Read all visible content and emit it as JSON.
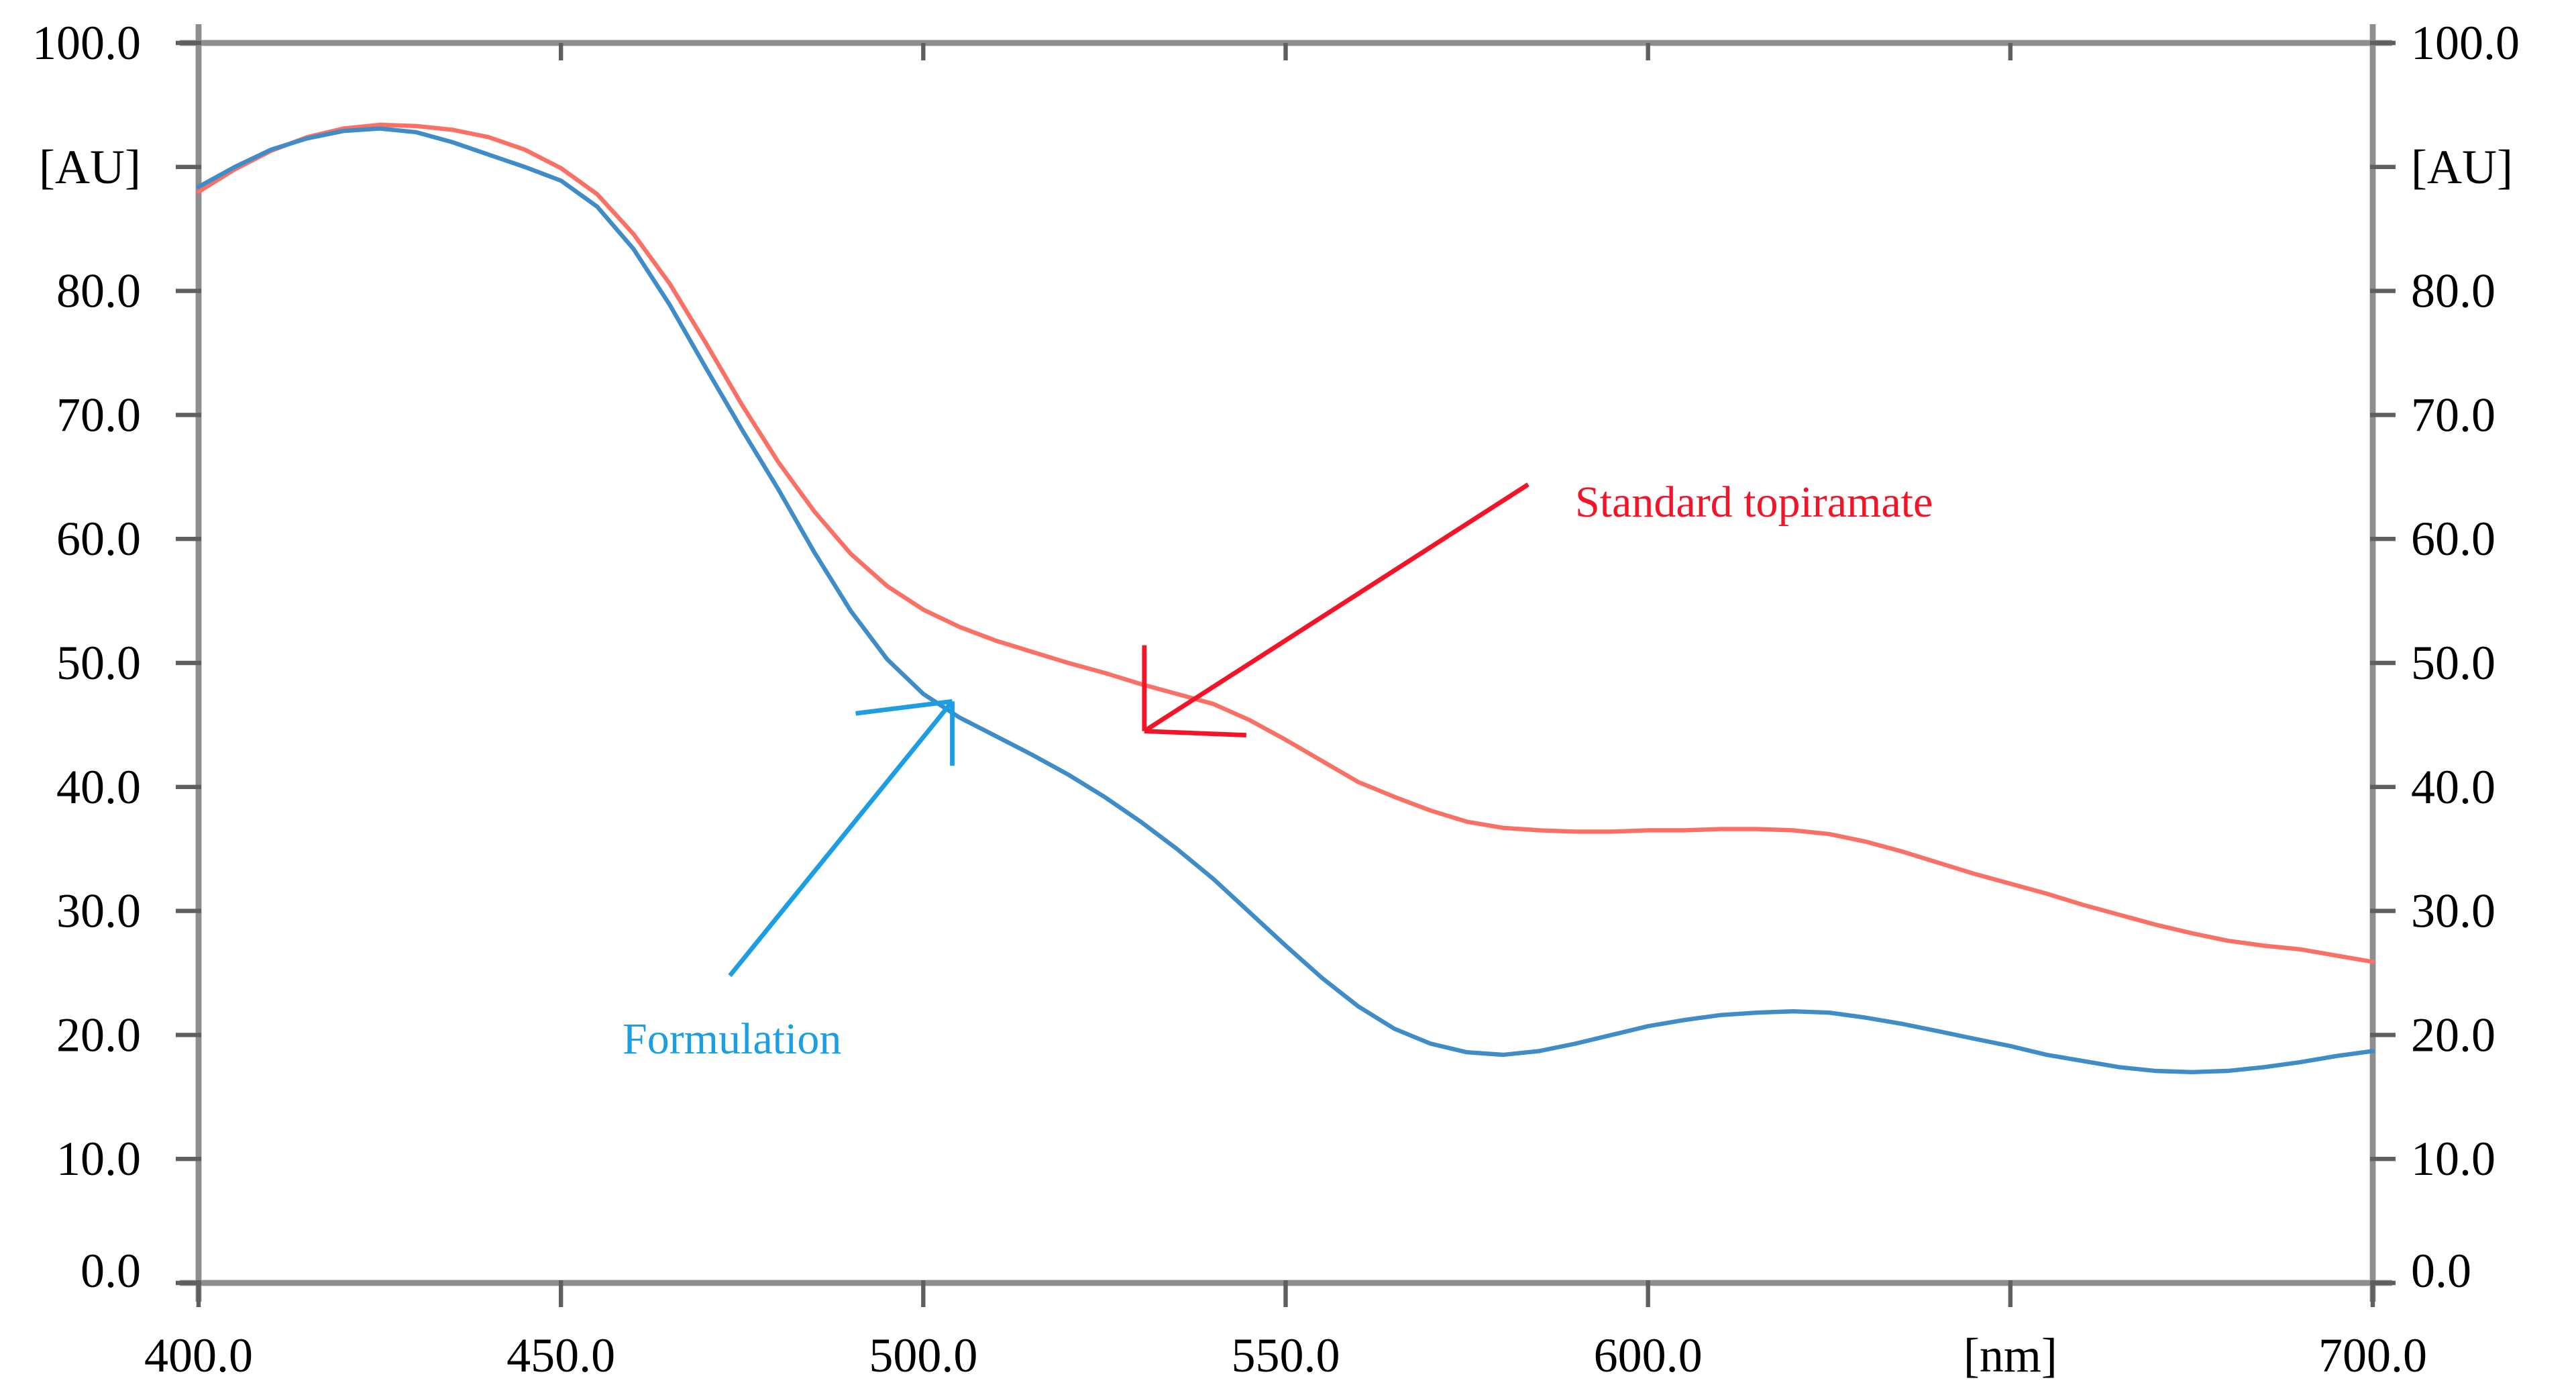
{
  "figure": {
    "background": "#ffffff",
    "axis_color": "#8e8e8e",
    "tick_color": "#5f5f5f",
    "label_color": "#000000"
  },
  "chart_data": {
    "type": "line",
    "title": "",
    "xlabel": "[nm]",
    "ylabel": "[AU]",
    "xlim": [
      400,
      700
    ],
    "ylim": [
      0,
      100
    ],
    "grid": false,
    "legend_position": "none",
    "x": [
      400,
      405,
      410,
      415,
      420,
      425,
      430,
      435,
      440,
      445,
      450,
      455,
      460,
      465,
      470,
      475,
      480,
      485,
      490,
      495,
      500,
      505,
      510,
      515,
      520,
      525,
      530,
      535,
      540,
      545,
      550,
      555,
      560,
      565,
      570,
      575,
      580,
      585,
      590,
      595,
      600,
      605,
      610,
      615,
      620,
      625,
      630,
      635,
      640,
      645,
      650,
      655,
      660,
      665,
      670,
      675,
      680,
      685,
      690,
      695,
      700
    ],
    "series": [
      {
        "name": "Standard topiramate",
        "color": "#fa7064",
        "values": [
          88.0,
          89.8,
          91.3,
          92.4,
          93.1,
          93.4,
          93.3,
          93.0,
          92.4,
          91.4,
          89.9,
          87.8,
          84.6,
          80.6,
          75.8,
          70.8,
          66.2,
          62.2,
          58.8,
          56.2,
          54.3,
          52.9,
          51.8,
          50.9,
          50.0,
          49.2,
          48.3,
          47.5,
          46.7,
          45.4,
          43.8,
          42.1,
          40.4,
          39.2,
          38.1,
          37.2,
          36.7,
          36.5,
          36.4,
          36.4,
          36.5,
          36.5,
          36.6,
          36.6,
          36.5,
          36.2,
          35.6,
          34.8,
          33.9,
          33.0,
          32.2,
          31.4,
          30.5,
          29.7,
          28.9,
          28.2,
          27.6,
          27.2,
          26.9,
          26.4,
          25.9
        ]
      },
      {
        "name": "Formulation",
        "color": "#3e8cc8",
        "values": [
          88.4,
          90.0,
          91.4,
          92.3,
          92.9,
          93.1,
          92.8,
          92.0,
          91.0,
          90.0,
          88.9,
          86.8,
          83.4,
          78.9,
          73.8,
          68.8,
          64.0,
          58.9,
          54.2,
          50.3,
          47.5,
          45.6,
          44.1,
          42.6,
          41.0,
          39.2,
          37.2,
          35.0,
          32.6,
          29.9,
          27.2,
          24.6,
          22.3,
          20.5,
          19.3,
          18.6,
          18.4,
          18.7,
          19.3,
          20.0,
          20.7,
          21.2,
          21.6,
          21.8,
          21.9,
          21.8,
          21.4,
          20.9,
          20.3,
          19.7,
          19.1,
          18.4,
          17.9,
          17.4,
          17.1,
          17.0,
          17.1,
          17.4,
          17.8,
          18.3,
          18.7
        ]
      }
    ],
    "x_ticks": [
      {
        "value": 400,
        "label": "400.0"
      },
      {
        "value": 450,
        "label": "450.0"
      },
      {
        "value": 500,
        "label": "500.0"
      },
      {
        "value": 550,
        "label": "550.0"
      },
      {
        "value": 600,
        "label": "600.0"
      },
      {
        "value": 650,
        "label": "[nm]"
      },
      {
        "value": 700,
        "label": "700.0"
      }
    ],
    "y_ticks": [
      {
        "value": 100,
        "label": "100.0"
      },
      {
        "value": 90,
        "label": "[AU]"
      },
      {
        "value": 80,
        "label": "80.0"
      },
      {
        "value": 70,
        "label": "70.0"
      },
      {
        "value": 60,
        "label": "60.0"
      },
      {
        "value": 50,
        "label": "50.0"
      },
      {
        "value": 40,
        "label": "40.0"
      },
      {
        "value": 30,
        "label": "30.0"
      },
      {
        "value": 20,
        "label": "20.0"
      },
      {
        "value": 10,
        "label": "10.0"
      },
      {
        "value": 0,
        "label": "0.0"
      }
    ]
  },
  "annotations": {
    "standard": {
      "label": "Standard topiramate",
      "color": "#f41428",
      "points_to": {
        "nm": 530.5,
        "au": 44.5
      }
    },
    "formulation": {
      "label": "Formulation",
      "color": "#1b9ee4",
      "points_to": {
        "nm": 504,
        "au": 46.9
      }
    }
  }
}
